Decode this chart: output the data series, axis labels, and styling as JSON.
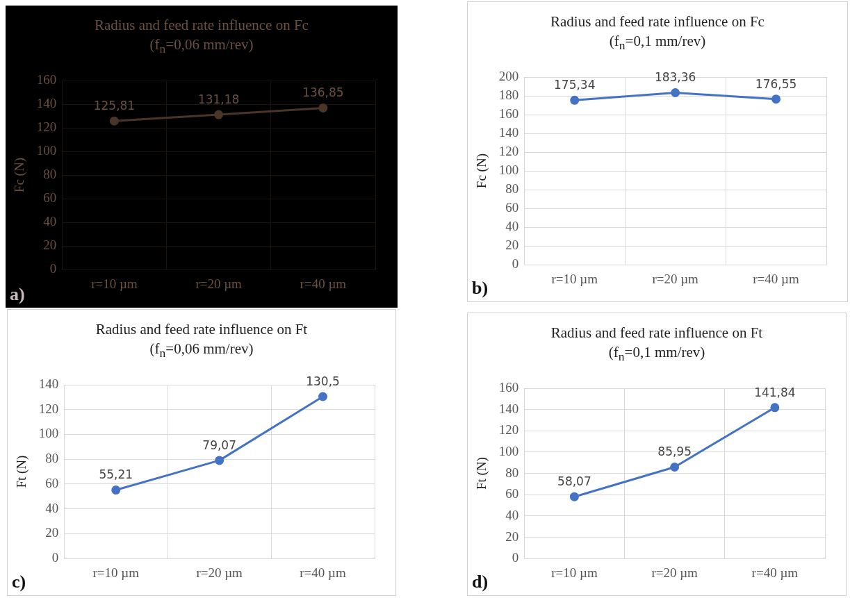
{
  "chart_data": [
    {
      "type": "line",
      "title": "Radius and feed rate influence on Fc",
      "subtitle": "(f$_{n}$=0,06 mm/rev)",
      "ylabel": "Fc (N)",
      "categories": [
        "r=10 µm",
        "r=20 µm",
        "r=40 µm"
      ],
      "series": [
        {
          "color": "#4a3528",
          "values": [
            125.81,
            131.18,
            136.85
          ],
          "value_labels": [
            "125,81",
            "131,18",
            "136,85"
          ]
        }
      ],
      "ylim": [
        0,
        160
      ],
      "yticks": [
        0,
        20,
        40,
        60,
        80,
        100,
        120,
        140,
        160
      ],
      "grid": true,
      "marker": "circle",
      "annotations": [
        "a)"
      ]
    },
    {
      "type": "line",
      "title": "Radius and feed rate influence on Fc",
      "subtitle": "(f$_{n}$=0,1 mm/rev)",
      "ylabel": "Fc (N)",
      "categories": [
        "r=10 µm",
        "r=20 µm",
        "r=40 µm"
      ],
      "series": [
        {
          "color": "#4472c4",
          "values": [
            175.34,
            183.36,
            176.55
          ],
          "value_labels": [
            "175,34",
            "183,36",
            "176,55"
          ]
        }
      ],
      "ylim": [
        0,
        200
      ],
      "yticks": [
        0,
        20,
        40,
        60,
        80,
        100,
        120,
        140,
        160,
        180,
        200
      ],
      "grid": true,
      "marker": "circle",
      "annotations": [
        "b)"
      ]
    },
    {
      "type": "line",
      "title": "Radius and feed rate influence on Ft",
      "subtitle": "(f$_{n}$=0,06 mm/rev)",
      "ylabel": "Ft (N)",
      "categories": [
        "r=10 µm",
        "r=20 µm",
        "r=40 µm"
      ],
      "series": [
        {
          "color": "#4472c4",
          "values": [
            55.21,
            79.07,
            130.5
          ],
          "value_labels": [
            "55,21",
            "79,07",
            "130,5"
          ]
        }
      ],
      "ylim": [
        0,
        140
      ],
      "yticks": [
        0,
        20,
        40,
        60,
        80,
        100,
        120,
        140
      ],
      "grid": true,
      "marker": "circle",
      "annotations": [
        "c)"
      ]
    },
    {
      "type": "line",
      "title": "Radius and feed rate influence on Ft",
      "subtitle": "(f$_{n}$=0,1 mm/rev)",
      "ylabel": "Ft (N)",
      "categories": [
        "r=10 µm",
        "r=20 µm",
        "r=40 µm"
      ],
      "series": [
        {
          "color": "#4472c4",
          "values": [
            58.07,
            85.95,
            141.84
          ],
          "value_labels": [
            "58,07",
            "85,95",
            "141,84"
          ]
        }
      ],
      "ylim": [
        0,
        160
      ],
      "yticks": [
        0,
        20,
        40,
        60,
        80,
        100,
        120,
        140,
        160
      ],
      "grid": true,
      "marker": "circle",
      "annotations": [
        "d)"
      ]
    }
  ]
}
